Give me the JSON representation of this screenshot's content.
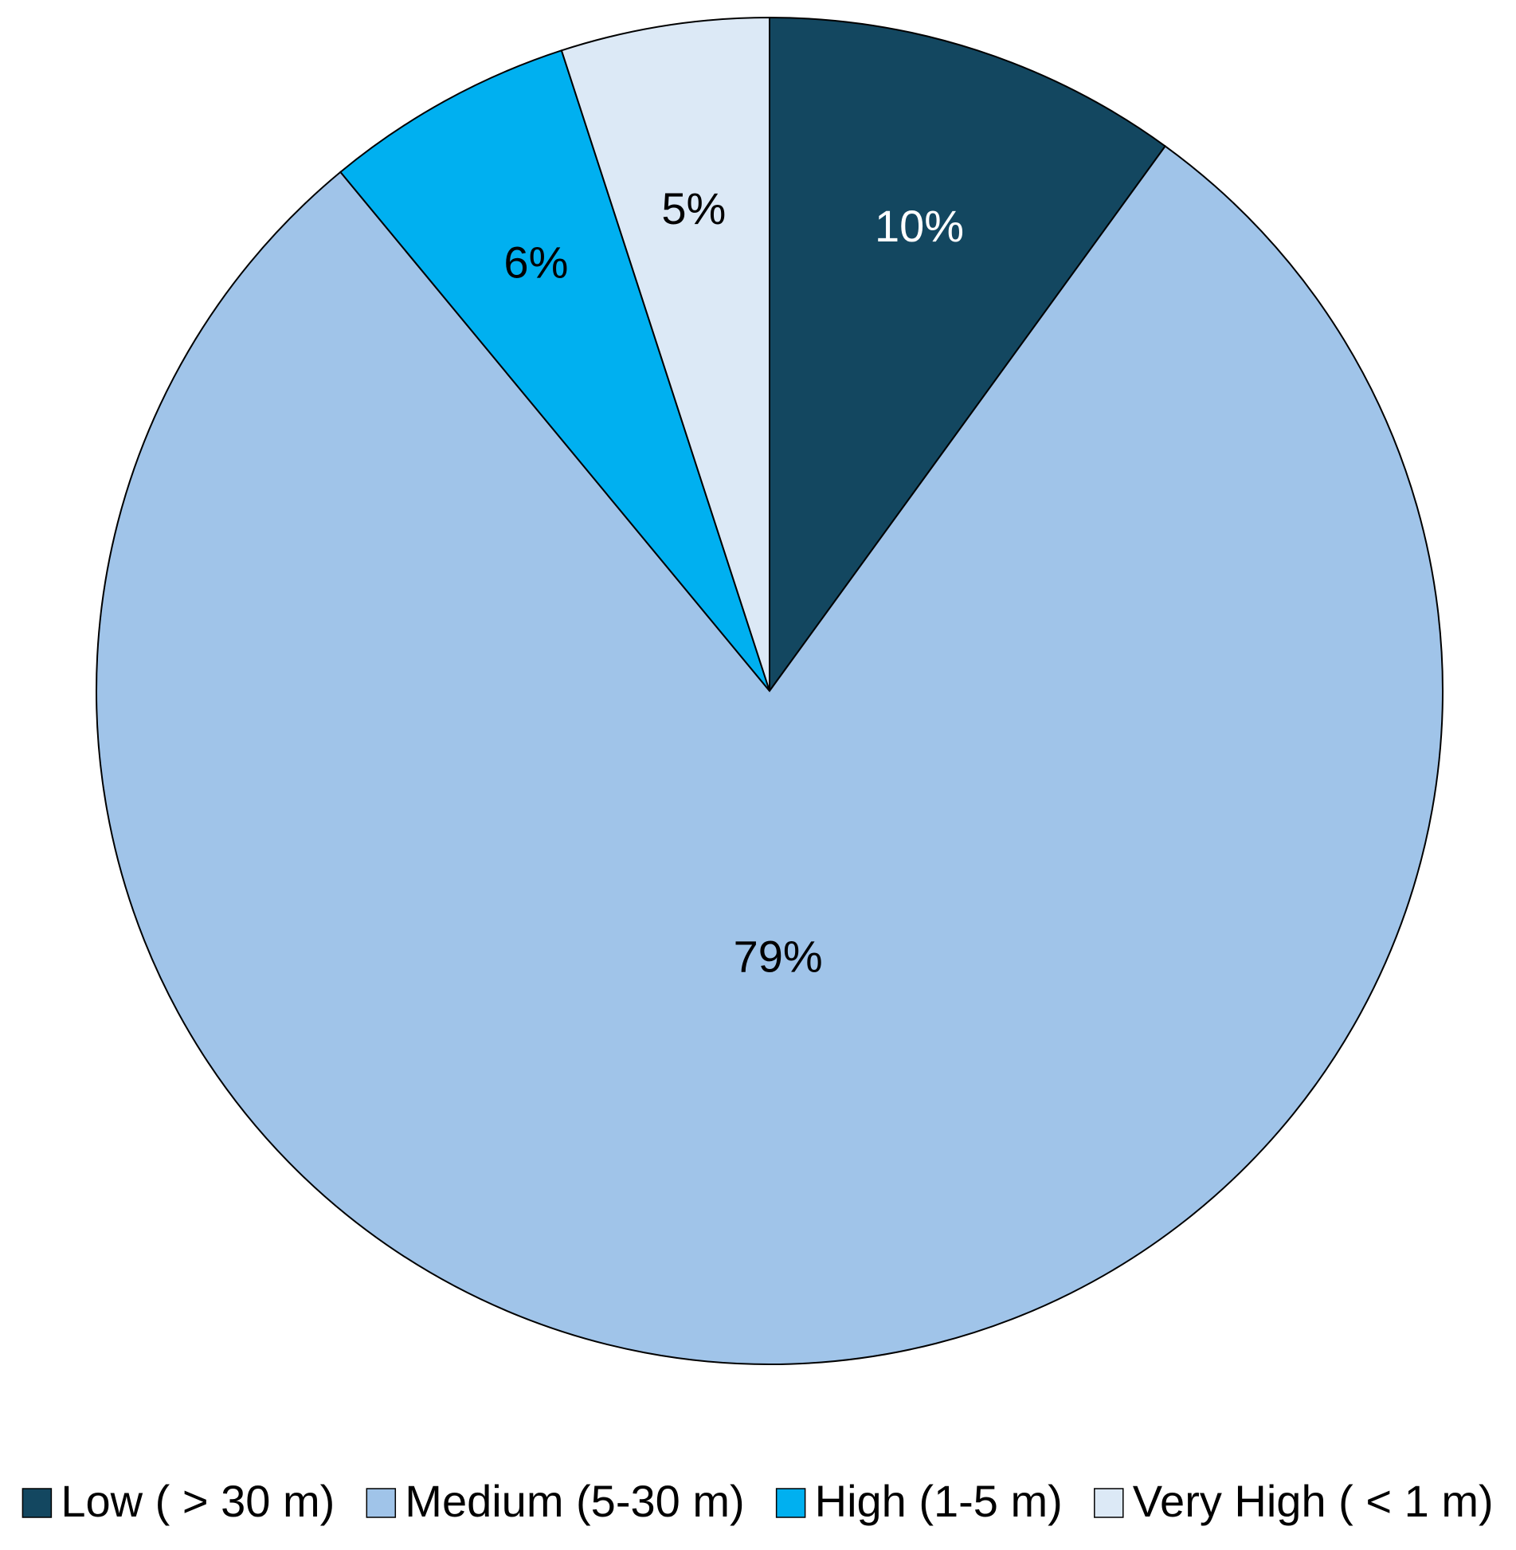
{
  "chart_data": {
    "type": "pie",
    "categories": [
      "Low ( > 30 m)",
      "Medium (5-30 m)",
      "High (1-5 m)",
      "Very High ( < 1 m)"
    ],
    "values": [
      10,
      79,
      6,
      5
    ],
    "value_labels": [
      "10%",
      "79%",
      "6%",
      "5%"
    ],
    "colors": [
      "#134760",
      "#a0c4e9",
      "#00b0f0",
      "#dce9f6"
    ],
    "label_colors": [
      "#ffffff",
      "#000000",
      "#000000",
      "#000000"
    ],
    "legend": "bottom"
  }
}
